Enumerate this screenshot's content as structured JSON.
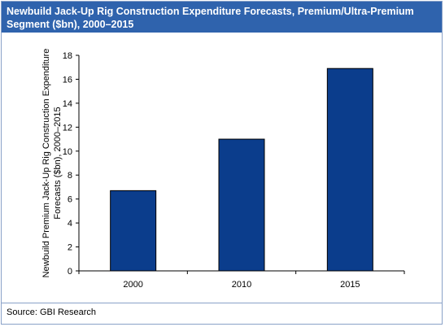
{
  "chart_data": {
    "type": "bar",
    "title": "Newbuild Jack-Up Rig Construction Expenditure Forecasts, Premium/Ultra-Premium Segment ($bn), 2000–2015",
    "ylabel_lines": [
      "Newbuild Premium Jack-Up Rig Construction Expenditure",
      "Forecasts ($bn), 2000–2015"
    ],
    "xlabel": "",
    "categories": [
      "2000",
      "2010",
      "2015"
    ],
    "values": [
      6.7,
      11.0,
      16.9
    ],
    "ylim": [
      0,
      18
    ],
    "yticks": [
      0,
      2,
      4,
      6,
      8,
      10,
      12,
      14,
      16,
      18
    ],
    "grid": false,
    "legend": "none",
    "bar_color": "#0b3d8c"
  },
  "source": "Source: GBI Research",
  "colors": {
    "header": "#2f63ad",
    "border": "#8aa2c8"
  }
}
